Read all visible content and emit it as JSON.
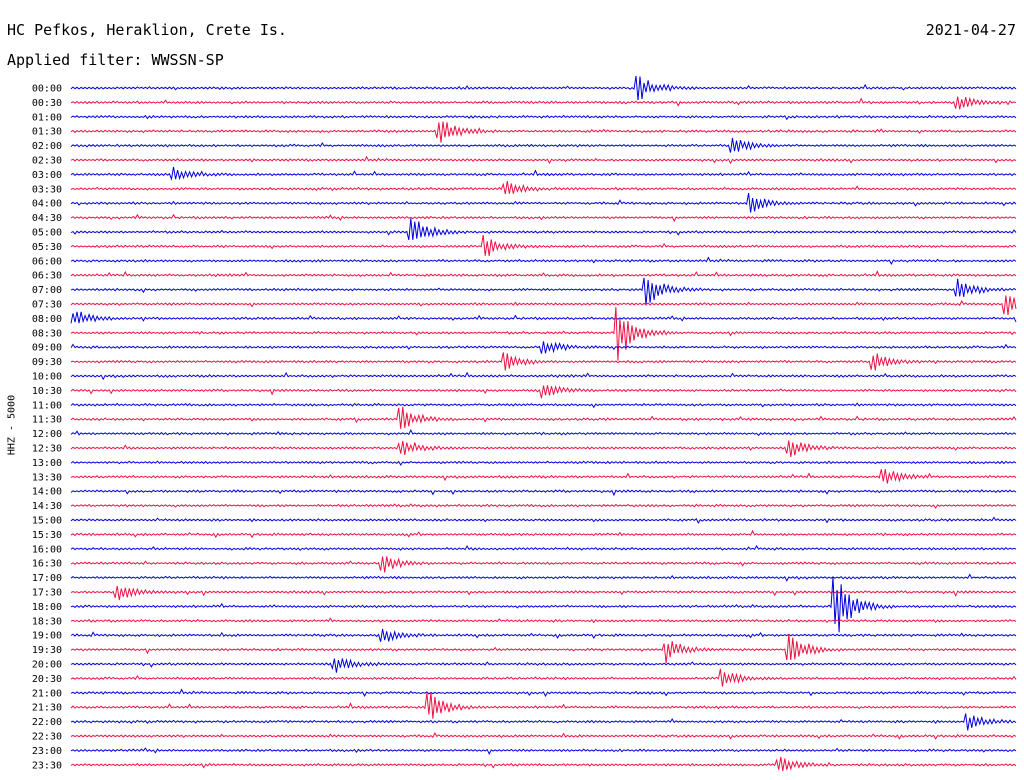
{
  "header": {
    "station": "HC Pefkos, Heraklion, Crete Is.",
    "filter": "Applied filter: WWSSN-SP",
    "date": "2021-04-27"
  },
  "chart_data": {
    "type": "line",
    "title": "HC Pefkos, Heraklion, Crete Is.",
    "subtitle": "Applied filter: WWSSN-SP",
    "ylabel": "HHZ - 5000",
    "categories": [
      "00:00",
      "00:30",
      "01:00",
      "01:30",
      "02:00",
      "02:30",
      "03:00",
      "03:30",
      "04:00",
      "04:30",
      "05:00",
      "05:30",
      "06:00",
      "06:30",
      "07:00",
      "07:30",
      "08:00",
      "08:30",
      "09:00",
      "09:30",
      "10:00",
      "10:30",
      "11:00",
      "11:30",
      "12:00",
      "12:30",
      "13:00",
      "13:30",
      "14:00",
      "14:30",
      "15:00",
      "15:30",
      "16:00",
      "16:30",
      "17:00",
      "17:30",
      "18:00",
      "18:30",
      "19:00",
      "19:30",
      "20:00",
      "20:30",
      "21:00",
      "21:30",
      "22:00",
      "22:30",
      "23:00",
      "23:30"
    ],
    "row_colors": [
      "#0000dd",
      "#ee1144"
    ],
    "events": [
      {
        "row": 0,
        "t": 0.6,
        "amp": 1.0
      },
      {
        "row": 1,
        "t": 0.94,
        "amp": 0.5
      },
      {
        "row": 3,
        "t": 0.39,
        "amp": 1.0
      },
      {
        "row": 4,
        "t": 0.7,
        "amp": 0.6
      },
      {
        "row": 6,
        "t": 0.11,
        "amp": 0.5
      },
      {
        "row": 7,
        "t": 0.46,
        "amp": 0.6
      },
      {
        "row": 8,
        "t": 0.72,
        "amp": 0.7
      },
      {
        "row": 10,
        "t": 0.36,
        "amp": 1.3
      },
      {
        "row": 11,
        "t": 0.44,
        "amp": 0.8
      },
      {
        "row": 14,
        "t": 0.61,
        "amp": 1.1
      },
      {
        "row": 14,
        "t": 0.94,
        "amp": 0.7
      },
      {
        "row": 15,
        "t": 0.99,
        "amp": 0.8
      },
      {
        "row": 16,
        "t": 0.0,
        "amp": 0.8
      },
      {
        "row": 17,
        "t": 0.58,
        "amp": 2.0
      },
      {
        "row": 18,
        "t": 0.5,
        "amp": 0.6
      },
      {
        "row": 19,
        "t": 0.46,
        "amp": 0.7
      },
      {
        "row": 19,
        "t": 0.85,
        "amp": 0.7
      },
      {
        "row": 21,
        "t": 0.5,
        "amp": 0.6
      },
      {
        "row": 23,
        "t": 0.35,
        "amp": 0.9
      },
      {
        "row": 25,
        "t": 0.35,
        "amp": 0.6
      },
      {
        "row": 25,
        "t": 0.76,
        "amp": 0.7
      },
      {
        "row": 27,
        "t": 0.86,
        "amp": 0.6
      },
      {
        "row": 33,
        "t": 0.33,
        "amp": 0.7
      },
      {
        "row": 35,
        "t": 0.05,
        "amp": 0.6
      },
      {
        "row": 36,
        "t": 0.81,
        "amp": 2.3
      },
      {
        "row": 38,
        "t": 0.33,
        "amp": 0.5
      },
      {
        "row": 39,
        "t": 0.63,
        "amp": 0.9
      },
      {
        "row": 39,
        "t": 0.76,
        "amp": 1.2
      },
      {
        "row": 40,
        "t": 0.28,
        "amp": 0.6
      },
      {
        "row": 41,
        "t": 0.69,
        "amp": 0.6
      },
      {
        "row": 43,
        "t": 0.38,
        "amp": 1.1
      },
      {
        "row": 44,
        "t": 0.95,
        "amp": 0.6
      },
      {
        "row": 47,
        "t": 0.75,
        "amp": 0.6
      }
    ]
  }
}
